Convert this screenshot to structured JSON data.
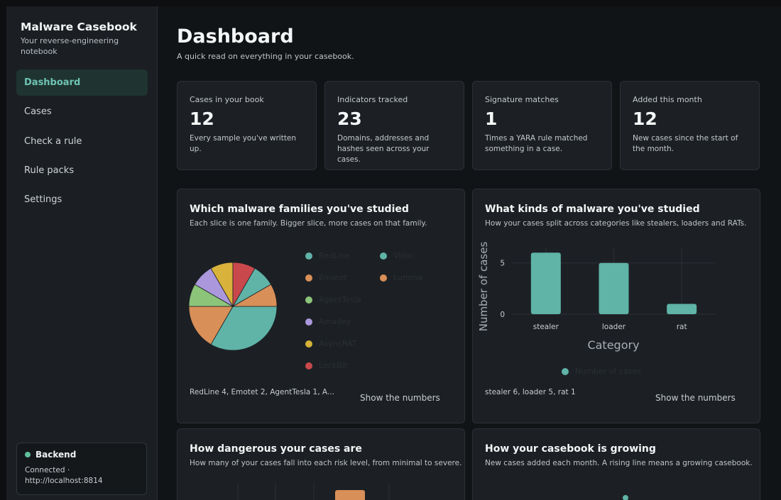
{
  "sidebar": {
    "title": "Malware Casebook",
    "subtitle": "Your reverse-engineering notebook",
    "nav": [
      {
        "label": "Dashboard",
        "active": true
      },
      {
        "label": "Cases",
        "active": false
      },
      {
        "label": "Check a rule",
        "active": false
      },
      {
        "label": "Rule packs",
        "active": false
      },
      {
        "label": "Settings",
        "active": false
      }
    ],
    "backend": {
      "label": "Backend",
      "status": "Connected · http://localhost:8814",
      "status_color": "#5fc09c"
    }
  },
  "header": {
    "title": "Dashboard",
    "subtitle": "A quick read on everything in your casebook."
  },
  "stats": [
    {
      "label": "Cases in your book",
      "value": "12",
      "desc": "Every sample you've written up."
    },
    {
      "label": "Indicators tracked",
      "value": "23",
      "desc": "Domains, addresses and hashes seen across your cases."
    },
    {
      "label": "Signature matches",
      "value": "1",
      "desc": "Times a YARA rule matched something in a case."
    },
    {
      "label": "Added this month",
      "value": "12",
      "desc": "New cases since the start of the month."
    }
  ],
  "cards": {
    "families": {
      "title": "Which malware families you've studied",
      "subtitle": "Each slice is one family. Bigger slice, more cases on that family.",
      "footer": "RedLine 4, Emotet 2, AgentTesla 1, A...",
      "show_label": "Show the numbers"
    },
    "kinds": {
      "title": "What kinds of malware you've studied",
      "subtitle": "How your cases split across categories like stealers, loaders and RATs.",
      "footer": "stealer 6, loader 5, rat 1",
      "show_label": "Show the numbers"
    },
    "danger": {
      "title": "How dangerous your cases are",
      "subtitle": "How many of your cases fall into each risk level, from minimal to severe."
    },
    "growth": {
      "title": "How your casebook is growing",
      "subtitle": "New cases added each month. A rising line means a growing casebook."
    }
  },
  "chart_data": [
    {
      "type": "pie",
      "labels": [
        "RedLine",
        "Emotet",
        "AgentTesla",
        "Amadey",
        "AsyncRAT",
        "LockBit",
        "Vidar",
        "Lumma"
      ],
      "values": [
        4,
        2,
        1,
        1,
        1,
        1,
        1,
        1
      ],
      "colors": [
        "#5fb3a7",
        "#d98f58",
        "#8cc47a",
        "#ab98dc",
        "#d8b23a",
        "#c9484c",
        "#5fb3a7",
        "#d98f58"
      ],
      "legend": "right"
    },
    {
      "type": "bar",
      "categories": [
        "stealer",
        "loader",
        "rat"
      ],
      "series": [
        {
          "name": "Number of cases",
          "values": [
            6,
            5,
            1
          ],
          "color": "#5fb3a7"
        }
      ],
      "xlabel": "Category",
      "ylabel": "Number of cases",
      "yticks": [
        0,
        5
      ],
      "ylim": [
        0,
        6.5
      ],
      "grid": true,
      "legend": "bottom"
    }
  ]
}
